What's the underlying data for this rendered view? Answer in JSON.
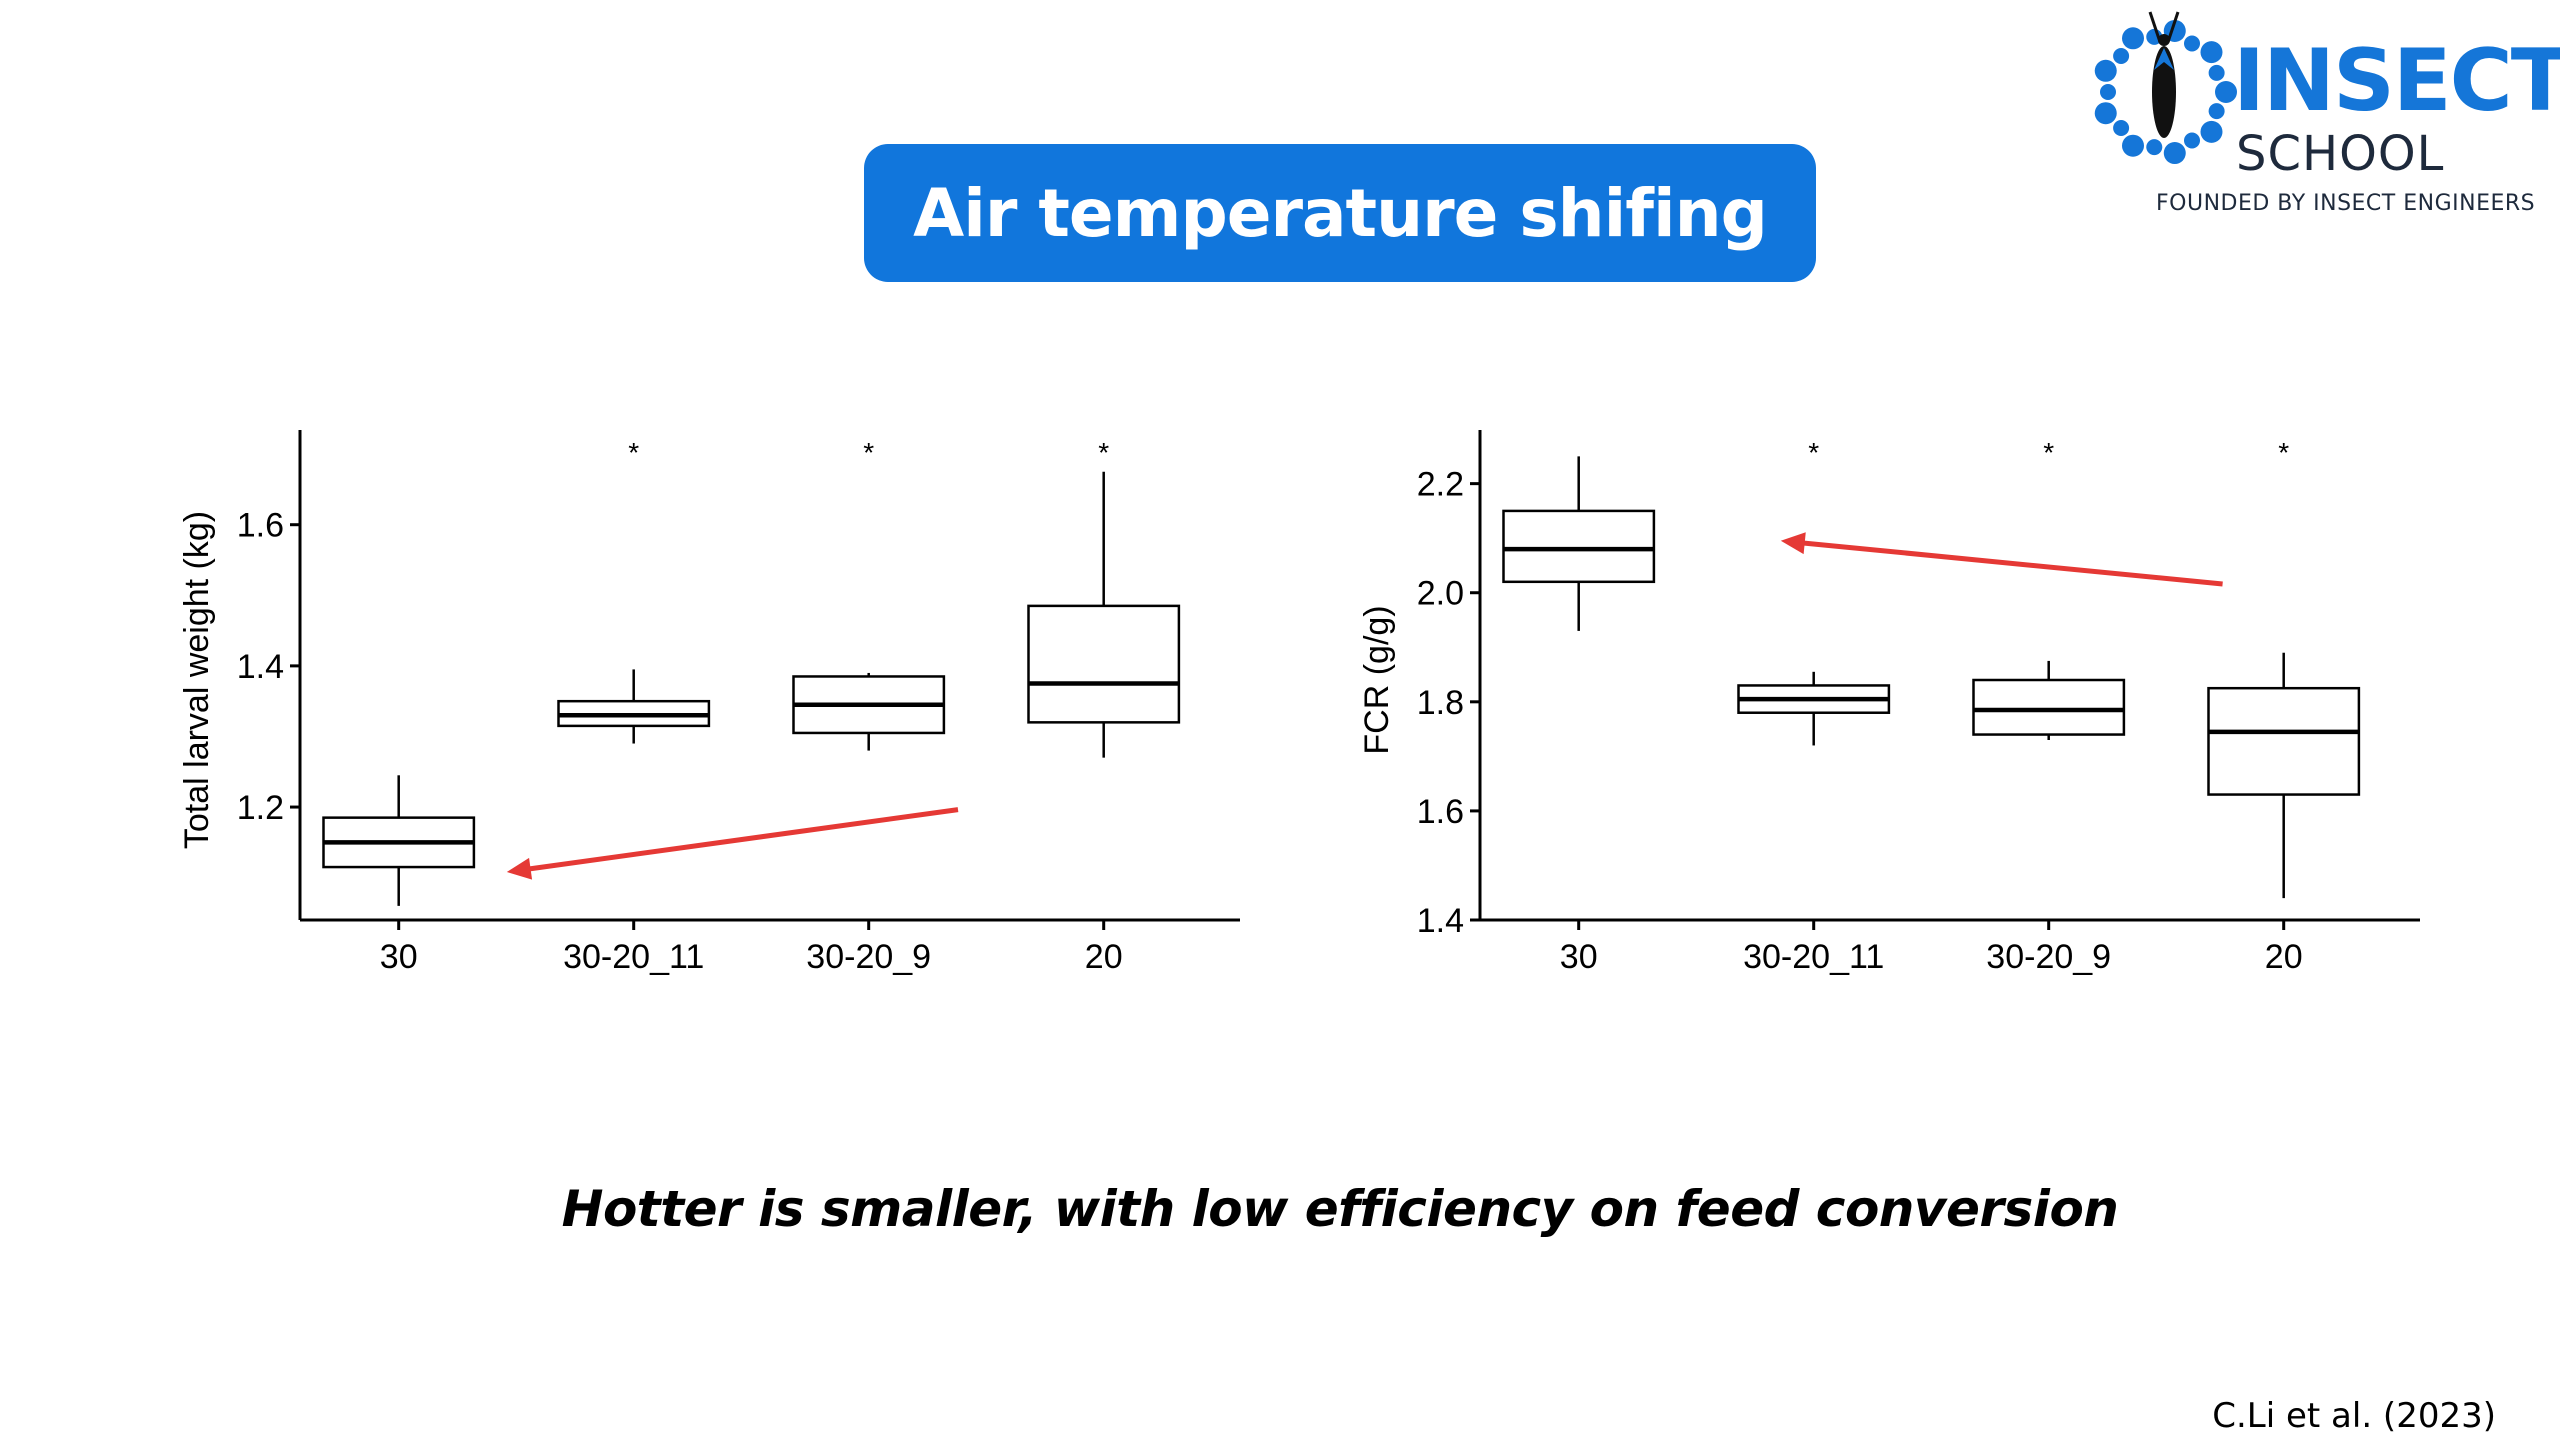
{
  "title": "Air temperature shifing",
  "logo": {
    "name": "INSECT",
    "subname": "SCHOOL",
    "tagline": "FOUNDED BY INSECT ENGINEERS",
    "colors": {
      "blue": "#1576d8",
      "dark": "#1e2a3c"
    }
  },
  "caption": "Hotter is smaller, with low efficiency on feed conversion",
  "citation": "C.Li et al. (2023)",
  "colors": {
    "title_bg": "#1176dc",
    "arrow": "#e53935"
  },
  "chart_data": [
    {
      "type": "box",
      "ylabel": "Total larval weight (kg)",
      "ylim": [
        1.04,
        1.72
      ],
      "yticks": [
        "1.2",
        "1.4",
        "1.6"
      ],
      "categories": [
        "30",
        "30-20_11",
        "30-20_9",
        "20"
      ],
      "boxes": [
        {
          "min": 1.06,
          "q1": 1.115,
          "median": 1.15,
          "q3": 1.185,
          "max": 1.245
        },
        {
          "min": 1.29,
          "q1": 1.315,
          "median": 1.33,
          "q3": 1.35,
          "max": 1.395
        },
        {
          "min": 1.28,
          "q1": 1.305,
          "median": 1.345,
          "q3": 1.385,
          "max": 1.39
        },
        {
          "min": 1.27,
          "q1": 1.32,
          "median": 1.375,
          "q3": 1.485,
          "max": 1.675
        }
      ],
      "significance": [
        "",
        "*",
        "*",
        "*"
      ],
      "annotation": {
        "type": "arrow",
        "from_category": "20",
        "to_category": "30-20_11",
        "direction": "left"
      }
    },
    {
      "type": "box",
      "ylabel": "FCR (g/g)",
      "ylim": [
        1.4,
        2.28
      ],
      "yticks": [
        "1.4",
        "1.6",
        "1.8",
        "2.0",
        "2.2"
      ],
      "categories": [
        "30",
        "30-20_11",
        "30-20_9",
        "20"
      ],
      "boxes": [
        {
          "min": 1.93,
          "q1": 2.02,
          "median": 2.08,
          "q3": 2.15,
          "max": 2.25
        },
        {
          "min": 1.72,
          "q1": 1.78,
          "median": 1.805,
          "q3": 1.83,
          "max": 1.855
        },
        {
          "min": 1.73,
          "q1": 1.74,
          "median": 1.785,
          "q3": 1.84,
          "max": 1.875
        },
        {
          "min": 1.44,
          "q1": 1.63,
          "median": 1.745,
          "q3": 1.825,
          "max": 1.89
        }
      ],
      "significance": [
        "",
        "*",
        "*",
        "*"
      ],
      "annotation": {
        "type": "arrow",
        "from_category": "20",
        "to_category": "30",
        "direction": "left"
      }
    }
  ]
}
